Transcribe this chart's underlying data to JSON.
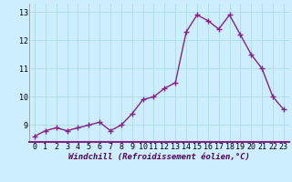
{
  "x": [
    0,
    1,
    2,
    3,
    4,
    5,
    6,
    7,
    8,
    9,
    10,
    11,
    12,
    13,
    14,
    15,
    16,
    17,
    18,
    19,
    20,
    21,
    22,
    23
  ],
  "y": [
    8.6,
    8.8,
    8.9,
    8.8,
    8.9,
    9.0,
    9.1,
    8.8,
    9.0,
    9.4,
    9.9,
    10.0,
    10.3,
    10.5,
    12.3,
    12.9,
    12.7,
    12.4,
    12.9,
    12.2,
    11.5,
    11.0,
    10.0,
    9.55
  ],
  "line_color": "#882288",
  "marker": "+",
  "marker_size": 4,
  "linewidth": 1.0,
  "bg_color": "#cceeff",
  "plot_bg_color": "#cceeff",
  "grid_color": "#aadddd",
  "xlabel": "Windchill (Refroidissement éolien,°C)",
  "xlim": [
    -0.5,
    23.5
  ],
  "ylim": [
    8.4,
    13.3
  ],
  "yticks": [
    9,
    10,
    11,
    12,
    13
  ],
  "xticks": [
    0,
    1,
    2,
    3,
    4,
    5,
    6,
    7,
    8,
    9,
    10,
    11,
    12,
    13,
    14,
    15,
    16,
    17,
    18,
    19,
    20,
    21,
    22,
    23
  ],
  "tick_fontsize": 6,
  "label_fontsize": 6.5,
  "spine_color": "#882288"
}
